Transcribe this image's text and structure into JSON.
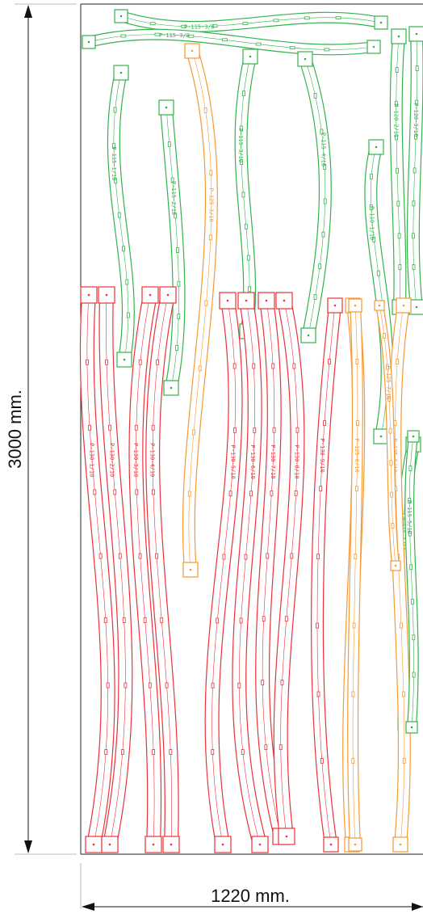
{
  "dimensions": {
    "height_label": "3000 mm.",
    "width_label": "1220 mm."
  },
  "colors": {
    "green": "#33b24a",
    "orange": "#f39a35",
    "red": "#e8333a",
    "line": "#222222"
  },
  "parts": [
    {
      "color": "green",
      "label": "P-115-3/8"
    },
    {
      "color": "green",
      "label": "P-115-3/8"
    },
    {
      "color": "green",
      "label": "P-115-1/10"
    },
    {
      "color": "green",
      "label": "P-115-2/10"
    },
    {
      "color": "orange",
      "label": "P-125-3/10"
    },
    {
      "color": "green",
      "label": "P-115-3/10"
    },
    {
      "color": "green",
      "label": "P-115-4/10"
    },
    {
      "color": "green",
      "label": "P-110-1/10"
    },
    {
      "color": "green",
      "label": "P-120-2/11"
    },
    {
      "color": "green",
      "label": "P-120-3/10"
    },
    {
      "color": "green",
      "label": "P-115-1/10"
    },
    {
      "color": "red",
      "label": "P-130-1/10"
    },
    {
      "color": "red",
      "label": "P-130-2/10"
    },
    {
      "color": "red",
      "label": "P-130-3/10"
    },
    {
      "color": "red",
      "label": "P-130-4/10"
    },
    {
      "color": "red",
      "label": "P-130-5/10"
    },
    {
      "color": "red",
      "label": "P-130-6/10"
    },
    {
      "color": "red",
      "label": "P-130-7/10"
    },
    {
      "color": "red",
      "label": "P-130-8/10"
    },
    {
      "color": "red",
      "label": "P-130-9/10"
    },
    {
      "color": "orange",
      "label": "P-125-4/10"
    },
    {
      "color": "orange",
      "label": "P-125-5/10"
    },
    {
      "color": "orange",
      "label": "P-125-6/10"
    },
    {
      "color": "orange",
      "label": "P-125-7/10"
    },
    {
      "color": "green",
      "label": "P-115-5/10"
    }
  ]
}
